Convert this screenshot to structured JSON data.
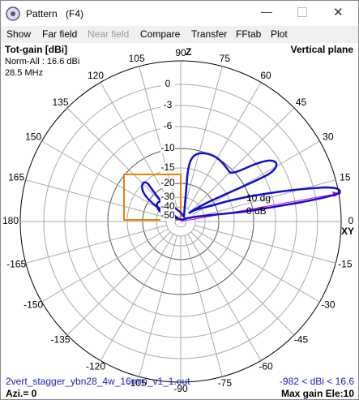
{
  "window": {
    "title": "Pattern",
    "shortcut": "(F4)"
  },
  "menu": [
    "Show",
    "Far field",
    "Near field",
    "Compare",
    "Transfer",
    "FFtab",
    "Plot"
  ],
  "plot": {
    "quantity": "Tot-gain [dBi]",
    "normalization": "Norm-All : 16.6 dBi",
    "frequency": "28.5 MHz",
    "plane": "Vertical plane",
    "angle_labels": [
      90,
      105,
      120,
      135,
      150,
      165,
      180,
      -165,
      -150,
      -135,
      -120,
      -105,
      -90,
      -75,
      -60,
      -45,
      -30,
      -15,
      0,
      15,
      30,
      45,
      60,
      75
    ],
    "ring_labels": [
      0,
      -3,
      -6,
      -10,
      -15,
      -20,
      -30,
      -40,
      -50
    ],
    "vertical_axis": "Z",
    "horizontal_axis": "XY",
    "marker_angle": "10 dg",
    "marker_level": "0 dB",
    "file": "2vert_stagger_ybn28_4w_16mm_v1_1.out",
    "range": "-982 < dBi < 16.6",
    "azimuth": "Azi.= 0",
    "max_gain": "Max gain Ele:10"
  }
}
